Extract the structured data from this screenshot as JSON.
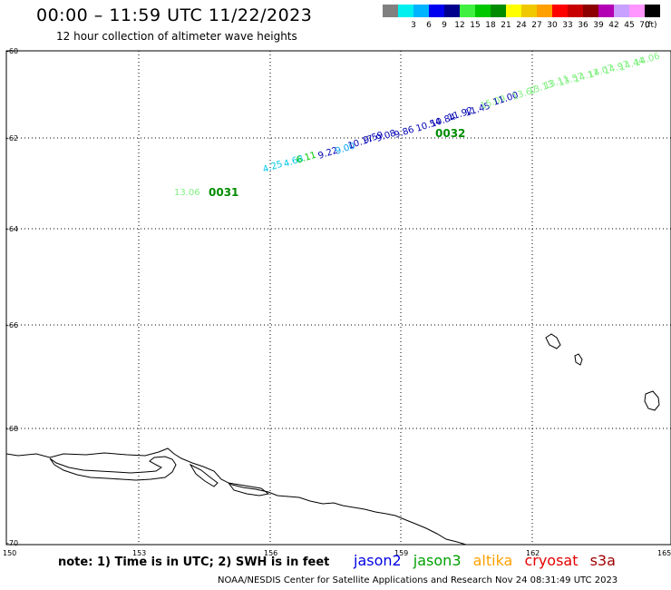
{
  "header": {
    "title": "00:00 – 11:59 UTC 11/22/2023",
    "subtitle": "12 hour collection of altimeter wave heights",
    "units": "(ft)"
  },
  "color_scale": [
    {
      "color": "#808080",
      "label": ""
    },
    {
      "color": "#00f0f0",
      "label": "3"
    },
    {
      "color": "#00b4ff",
      "label": "6"
    },
    {
      "color": "#0000f0",
      "label": "9"
    },
    {
      "color": "#00008c",
      "label": "12"
    },
    {
      "color": "#40f040",
      "label": "15"
    },
    {
      "color": "#00c800",
      "label": "18"
    },
    {
      "color": "#008c00",
      "label": "21"
    },
    {
      "color": "#ffff00",
      "label": "24"
    },
    {
      "color": "#f0c800",
      "label": "27"
    },
    {
      "color": "#ffa000",
      "label": "30"
    },
    {
      "color": "#ff0000",
      "label": "33"
    },
    {
      "color": "#c80000",
      "label": "36"
    },
    {
      "color": "#8c0000",
      "label": "39"
    },
    {
      "color": "#b400b4",
      "label": "42"
    },
    {
      "color": "#c8a0ff",
      "label": "45"
    },
    {
      "color": "#ff96ff",
      "label": "70"
    },
    {
      "color": "#000000",
      "label": ""
    }
  ],
  "axes": {
    "y_labels": [
      "-60",
      "-62",
      "-64",
      "-66",
      "-68",
      "-70"
    ],
    "x_labels": [
      "150",
      "153",
      "156",
      "159",
      "162",
      "165"
    ]
  },
  "observations": [
    {
      "text": "4.25",
      "color": "#00c8e6"
    },
    {
      "text": "4.68",
      "color": "#00c8e6"
    },
    {
      "text": "6.11",
      "color": "#00c800"
    },
    {
      "text": "9.22",
      "color": "#0000b4"
    },
    {
      "text": "9.00",
      "color": "#00a0f0"
    },
    {
      "text": "10.17",
      "color": "#0000b4"
    },
    {
      "text": "9.59",
      "color": "#0000b4"
    },
    {
      "text": "9.08",
      "color": "#0000b4"
    },
    {
      "text": "9.86",
      "color": "#0000b4"
    },
    {
      "text": "10.54",
      "color": "#0000b4"
    },
    {
      "text": "10.84",
      "color": "#0000b4"
    },
    {
      "text": "11.92",
      "color": "#0000b4"
    },
    {
      "text": "11.45",
      "color": "#0000b4"
    },
    {
      "text": "15.09",
      "color": "#80f080"
    },
    {
      "text": "11.00",
      "color": "#0000b4"
    },
    {
      "text": "13.67",
      "color": "#80f080"
    },
    {
      "text": "13.13",
      "color": "#80f080"
    },
    {
      "text": "13.11",
      "color": "#80f080"
    },
    {
      "text": "13.57",
      "color": "#80f080"
    },
    {
      "text": "14.17",
      "color": "#80f080"
    },
    {
      "text": "14.07",
      "color": "#80f080"
    },
    {
      "text": "14.97",
      "color": "#80f080"
    },
    {
      "text": "14.44",
      "color": "#80f080"
    },
    {
      "text": "14.06",
      "color": "#80f080"
    },
    {
      "text": "13.06",
      "color": "#80f080"
    }
  ],
  "pass_labels": [
    {
      "text": "0031",
      "color": "#008c00"
    },
    {
      "text": "0032",
      "color": "#008c00"
    }
  ],
  "footer": {
    "note": "note: 1) Time is in UTC; 2) SWH is in feet",
    "satellites": [
      {
        "name": "jason2",
        "color": "#0000e6"
      },
      {
        "name": "jason3",
        "color": "#00a000"
      },
      {
        "name": "altika",
        "color": "#ffa000"
      },
      {
        "name": "cryosat",
        "color": "#e60000"
      },
      {
        "name": "s3a",
        "color": "#a00000"
      }
    ],
    "credit": "NOAA/NESDIS Center for Satellite Applications and Research    Nov 24 08:31:49 UTC 2023"
  }
}
